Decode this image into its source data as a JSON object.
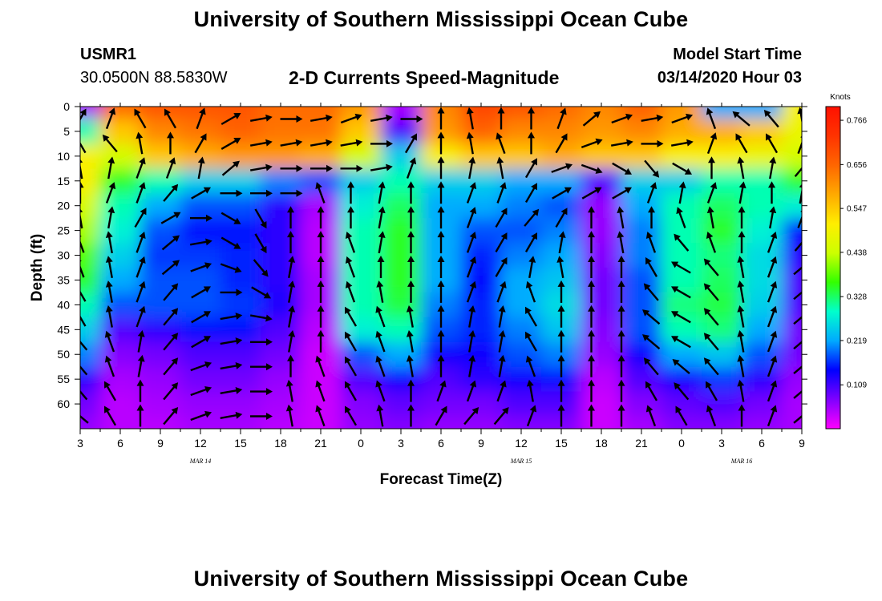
{
  "header": {
    "title_top": "University of Southern Mississippi Ocean Cube",
    "title_bottom": "University of Southern Mississippi Ocean Cube",
    "station_id": "USMR1",
    "station_coords": "30.0500N 88.5830W",
    "subtitle": "2-D Currents Speed-Magnitude",
    "model_start_label": "Model Start Time",
    "model_start_value": "03/14/2020 Hour 03"
  },
  "colors": {
    "scale": [
      "#ff00ff",
      "#7f00ff",
      "#0000ff",
      "#00aaff",
      "#00ffcc",
      "#33ff00",
      "#ccff00",
      "#ffee00",
      "#ffaa00",
      "#ff6600",
      "#ff3300",
      "#ff1100"
    ],
    "arrow": "#000000"
  },
  "chart_data": {
    "type": "heatmap",
    "title": "2-D Currents Speed-Magnitude",
    "xlabel": "Forecast Time(Z)",
    "ylabel": "Depth (ft)",
    "x_tick_labels": [
      "3",
      "6",
      "9",
      "12",
      "15",
      "18",
      "21",
      "0",
      "3",
      "6",
      "9",
      "12",
      "15",
      "18",
      "21",
      "0",
      "3",
      "6",
      "9"
    ],
    "x_hours_range": [
      3,
      57
    ],
    "date_labels": [
      {
        "text": "MAR 14",
        "hour": 12
      },
      {
        "text": "MAR 15",
        "hour": 36
      },
      {
        "text": "MAR 16",
        "hour": 52.5
      }
    ],
    "y_tick_labels": [
      "0",
      "5",
      "10",
      "15",
      "20",
      "25",
      "30",
      "35",
      "40",
      "45",
      "50",
      "55",
      "60"
    ],
    "ylim": [
      65,
      0
    ],
    "colorbar": {
      "title": "Knots",
      "ticks": [
        "0.766",
        "0.656",
        "0.547",
        "0.438",
        "0.328",
        "0.219",
        "0.109"
      ],
      "range": [
        0,
        0.8
      ]
    },
    "columns_hours": [
      3,
      6,
      9,
      12,
      15,
      18,
      21,
      24,
      27,
      30,
      33,
      36,
      39,
      42,
      45,
      48,
      51,
      54,
      57
    ],
    "rows_depth_ft": [
      0,
      5,
      10,
      15,
      20,
      25,
      30,
      35,
      40,
      45,
      50,
      55,
      60,
      65
    ],
    "speed_knots": [
      [
        0.05,
        0.65,
        0.68,
        0.68,
        0.68,
        0.65,
        0.65,
        0.6,
        0.05,
        0.62,
        0.7,
        0.68,
        0.65,
        0.62,
        0.66,
        0.6,
        0.22,
        0.22,
        0.5
      ],
      [
        0.3,
        0.55,
        0.62,
        0.64,
        0.66,
        0.64,
        0.64,
        0.55,
        0.1,
        0.6,
        0.66,
        0.62,
        0.62,
        0.6,
        0.62,
        0.58,
        0.58,
        0.55,
        0.48
      ],
      [
        0.5,
        0.45,
        0.55,
        0.58,
        0.6,
        0.6,
        0.58,
        0.45,
        0.25,
        0.5,
        0.55,
        0.55,
        0.58,
        0.55,
        0.55,
        0.5,
        0.5,
        0.48,
        0.45
      ],
      [
        0.5,
        0.35,
        0.3,
        0.25,
        0.25,
        0.2,
        0.18,
        0.25,
        0.3,
        0.25,
        0.25,
        0.22,
        0.22,
        0.1,
        0.25,
        0.25,
        0.3,
        0.3,
        0.35
      ],
      [
        0.45,
        0.3,
        0.22,
        0.18,
        0.18,
        0.12,
        0.05,
        0.28,
        0.33,
        0.22,
        0.22,
        0.2,
        0.18,
        0.06,
        0.22,
        0.3,
        0.33,
        0.3,
        0.28
      ],
      [
        0.42,
        0.28,
        0.18,
        0.15,
        0.15,
        0.12,
        0.04,
        0.3,
        0.35,
        0.22,
        0.18,
        0.18,
        0.2,
        0.06,
        0.2,
        0.3,
        0.35,
        0.28,
        0.15
      ],
      [
        0.38,
        0.25,
        0.17,
        0.17,
        0.16,
        0.12,
        0.04,
        0.3,
        0.35,
        0.22,
        0.16,
        0.2,
        0.22,
        0.07,
        0.2,
        0.3,
        0.32,
        0.26,
        0.12
      ],
      [
        0.35,
        0.22,
        0.18,
        0.18,
        0.16,
        0.12,
        0.05,
        0.3,
        0.35,
        0.22,
        0.15,
        0.22,
        0.24,
        0.08,
        0.18,
        0.3,
        0.33,
        0.26,
        0.1
      ],
      [
        0.3,
        0.18,
        0.18,
        0.18,
        0.17,
        0.13,
        0.05,
        0.3,
        0.34,
        0.2,
        0.16,
        0.22,
        0.26,
        0.08,
        0.18,
        0.32,
        0.34,
        0.25,
        0.1
      ],
      [
        0.25,
        0.1,
        0.12,
        0.15,
        0.15,
        0.1,
        0.04,
        0.28,
        0.3,
        0.18,
        0.16,
        0.2,
        0.24,
        0.07,
        0.18,
        0.3,
        0.32,
        0.22,
        0.08
      ],
      [
        0.2,
        0.07,
        0.08,
        0.1,
        0.1,
        0.08,
        0.03,
        0.18,
        0.22,
        0.14,
        0.14,
        0.18,
        0.2,
        0.06,
        0.14,
        0.22,
        0.24,
        0.18,
        0.08
      ],
      [
        0.12,
        0.05,
        0.06,
        0.08,
        0.08,
        0.06,
        0.03,
        0.1,
        0.14,
        0.1,
        0.12,
        0.14,
        0.15,
        0.04,
        0.1,
        0.14,
        0.17,
        0.12,
        0.06
      ],
      [
        0.08,
        0.04,
        0.05,
        0.06,
        0.06,
        0.05,
        0.03,
        0.07,
        0.09,
        0.08,
        0.08,
        0.1,
        0.1,
        0.03,
        0.07,
        0.09,
        0.1,
        0.08,
        0.05
      ],
      [
        0.06,
        0.04,
        0.04,
        0.05,
        0.05,
        0.04,
        0.03,
        0.06,
        0.07,
        0.06,
        0.06,
        0.07,
        0.07,
        0.03,
        0.05,
        0.07,
        0.07,
        0.06,
        0.05
      ]
    ],
    "vector_columns_hours": [
      3,
      5.25,
      7.5,
      9.75,
      12,
      14.25,
      16.5,
      18.75,
      21,
      23.25,
      25.5,
      27.75,
      30,
      32.25,
      34.5,
      36.75,
      39,
      41.25,
      43.5,
      45.75,
      48,
      50.25,
      52.5,
      54.75,
      57
    ],
    "vector_rows_depth_ft": [
      2.5,
      7.5,
      12.5,
      17.5,
      22.5,
      27.5,
      32.5,
      37.5,
      42.5,
      47.5,
      52.5,
      57.5,
      62.5
    ],
    "vector_direction_deg": [
      [
        210,
        200,
        150,
        150,
        200,
        240,
        260,
        270,
        260,
        250,
        260,
        270,
        180,
        170,
        180,
        180,
        200,
        230,
        250,
        260,
        250,
        160,
        130,
        140,
        170
      ],
      [
        150,
        140,
        170,
        180,
        210,
        240,
        260,
        260,
        260,
        260,
        270,
        210,
        180,
        170,
        160,
        180,
        210,
        250,
        260,
        270,
        260,
        200,
        150,
        150,
        200
      ],
      [
        170,
        190,
        200,
        200,
        190,
        230,
        260,
        270,
        270,
        270,
        260,
        200,
        180,
        190,
        170,
        210,
        250,
        290,
        300,
        320,
        300,
        180,
        170,
        190,
        220
      ],
      [
        180,
        200,
        200,
        220,
        240,
        270,
        270,
        270,
        160,
        180,
        190,
        180,
        180,
        200,
        200,
        210,
        240,
        240,
        240,
        200,
        190,
        200,
        190,
        180,
        190
      ],
      [
        170,
        190,
        210,
        240,
        270,
        300,
        330,
        180,
        180,
        180,
        190,
        180,
        180,
        200,
        210,
        220,
        210,
        180,
        170,
        180,
        160,
        170,
        180,
        190,
        200
      ],
      [
        160,
        170,
        200,
        230,
        260,
        300,
        330,
        180,
        180,
        160,
        190,
        180,
        180,
        200,
        210,
        210,
        190,
        180,
        170,
        160,
        140,
        160,
        180,
        200,
        220
      ],
      [
        160,
        170,
        200,
        230,
        250,
        290,
        320,
        190,
        180,
        160,
        180,
        180,
        180,
        200,
        210,
        190,
        170,
        180,
        180,
        150,
        120,
        140,
        170,
        200,
        230
      ],
      [
        150,
        170,
        200,
        220,
        240,
        270,
        300,
        190,
        180,
        160,
        170,
        180,
        180,
        200,
        200,
        160,
        180,
        180,
        180,
        140,
        120,
        140,
        170,
        200,
        230
      ],
      [
        150,
        170,
        200,
        220,
        240,
        260,
        280,
        190,
        180,
        150,
        160,
        170,
        180,
        190,
        190,
        150,
        180,
        180,
        180,
        130,
        120,
        140,
        170,
        200,
        230
      ],
      [
        140,
        160,
        190,
        220,
        240,
        260,
        270,
        190,
        180,
        150,
        160,
        170,
        180,
        190,
        190,
        150,
        180,
        180,
        180,
        130,
        120,
        140,
        170,
        200,
        230
      ],
      [
        140,
        160,
        190,
        220,
        250,
        260,
        270,
        180,
        160,
        150,
        160,
        170,
        180,
        190,
        190,
        160,
        180,
        180,
        180,
        140,
        130,
        140,
        170,
        200,
        230
      ],
      [
        140,
        150,
        180,
        220,
        250,
        260,
        270,
        170,
        160,
        150,
        160,
        180,
        200,
        200,
        200,
        170,
        180,
        180,
        180,
        150,
        140,
        150,
        170,
        200,
        230
      ],
      [
        130,
        150,
        180,
        220,
        250,
        260,
        270,
        170,
        160,
        150,
        170,
        180,
        210,
        220,
        220,
        200,
        180,
        180,
        180,
        160,
        150,
        160,
        180,
        200,
        230
      ]
    ]
  }
}
